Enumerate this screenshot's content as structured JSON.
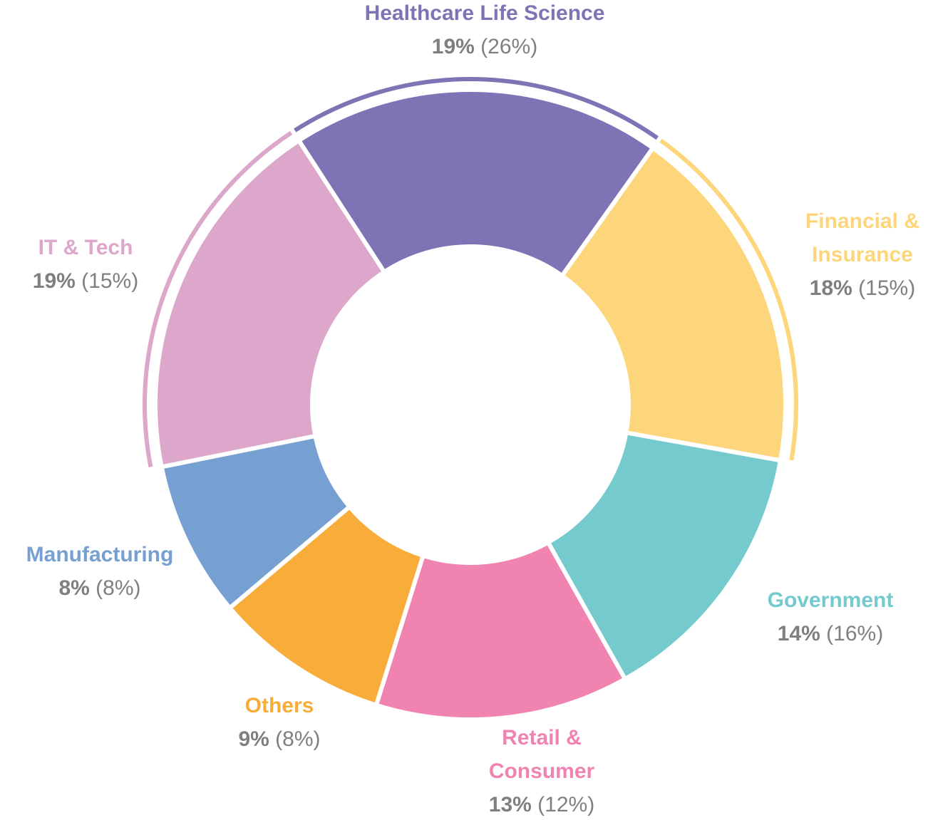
{
  "chart_data": {
    "type": "donut",
    "categories": [
      "Healthcare Life Science",
      "Financial & Insurance",
      "Government",
      "Retail & Consumer",
      "Others",
      "Manufacturing",
      "IT & Tech"
    ],
    "values": [
      19,
      18,
      14,
      13,
      9,
      8,
      19
    ],
    "value_labels": [
      "19%",
      "18%",
      "14%",
      "13%",
      "9%",
      "8%",
      "19%"
    ],
    "secondary_values": [
      26,
      15,
      16,
      12,
      8,
      8,
      15
    ],
    "secondary_value_labels": [
      "(26%)",
      "(15%)",
      "(16%)",
      "(12%)",
      "(8%)",
      "(8%)",
      "(15%)"
    ],
    "colors": [
      "#7f73b5",
      "#fdd57a",
      "#74cacd",
      "#f083b0",
      "#f8ad3a",
      "#769fd2",
      "#dca7cb"
    ],
    "outer_ring": [
      true,
      true,
      false,
      false,
      false,
      false,
      true
    ]
  }
}
